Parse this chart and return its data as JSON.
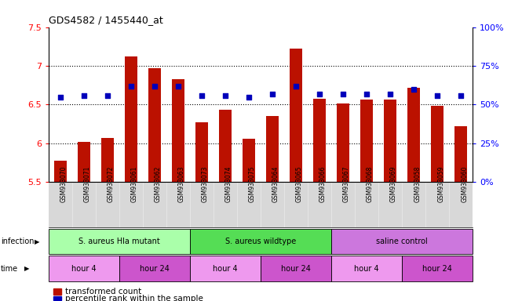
{
  "title": "GDS4582 / 1455440_at",
  "samples": [
    "GSM933070",
    "GSM933071",
    "GSM933072",
    "GSM933061",
    "GSM933062",
    "GSM933063",
    "GSM933073",
    "GSM933074",
    "GSM933075",
    "GSM933064",
    "GSM933065",
    "GSM933066",
    "GSM933067",
    "GSM933068",
    "GSM933069",
    "GSM933058",
    "GSM933059",
    "GSM933060"
  ],
  "bar_values": [
    5.78,
    6.02,
    6.07,
    7.12,
    6.97,
    6.83,
    6.27,
    6.43,
    6.06,
    6.35,
    7.22,
    6.58,
    6.51,
    6.57,
    6.57,
    6.72,
    6.48,
    6.22
  ],
  "dot_values_pct": [
    55,
    56,
    56,
    62,
    62,
    62,
    56,
    56,
    55,
    57,
    62,
    57,
    57,
    57,
    57,
    60,
    56,
    56
  ],
  "ylim_left": [
    5.5,
    7.5
  ],
  "ylim_right": [
    0,
    100
  ],
  "yticks_left": [
    5.5,
    6.0,
    6.5,
    7.0,
    7.5
  ],
  "ytick_labels_left": [
    "5.5",
    "6",
    "6.5",
    "7",
    "7.5"
  ],
  "yticks_right": [
    0,
    25,
    50,
    75,
    100
  ],
  "ytick_labels_right": [
    "0%",
    "25%",
    "50%",
    "75%",
    "100%"
  ],
  "bar_color": "#bb1100",
  "dot_color": "#0000bb",
  "bar_bottom": 5.5,
  "infection_groups": [
    {
      "label": "S. aureus Hla mutant",
      "start": 0,
      "end": 6,
      "color": "#aaffaa"
    },
    {
      "label": "S. aureus wildtype",
      "start": 6,
      "end": 12,
      "color": "#55dd55"
    },
    {
      "label": "saline control",
      "start": 12,
      "end": 18,
      "color": "#cc77dd"
    }
  ],
  "time_groups": [
    {
      "label": "hour 4",
      "start": 0,
      "end": 3,
      "color": "#ee99ee"
    },
    {
      "label": "hour 24",
      "start": 3,
      "end": 6,
      "color": "#cc55cc"
    },
    {
      "label": "hour 4",
      "start": 6,
      "end": 9,
      "color": "#ee99ee"
    },
    {
      "label": "hour 24",
      "start": 9,
      "end": 12,
      "color": "#cc55cc"
    },
    {
      "label": "hour 4",
      "start": 12,
      "end": 15,
      "color": "#ee99ee"
    },
    {
      "label": "hour 24",
      "start": 15,
      "end": 18,
      "color": "#cc55cc"
    }
  ],
  "legend_bar_label": "transformed count",
  "legend_dot_label": "percentile rank within the sample",
  "gridlines": [
    6.0,
    6.5,
    7.0
  ]
}
